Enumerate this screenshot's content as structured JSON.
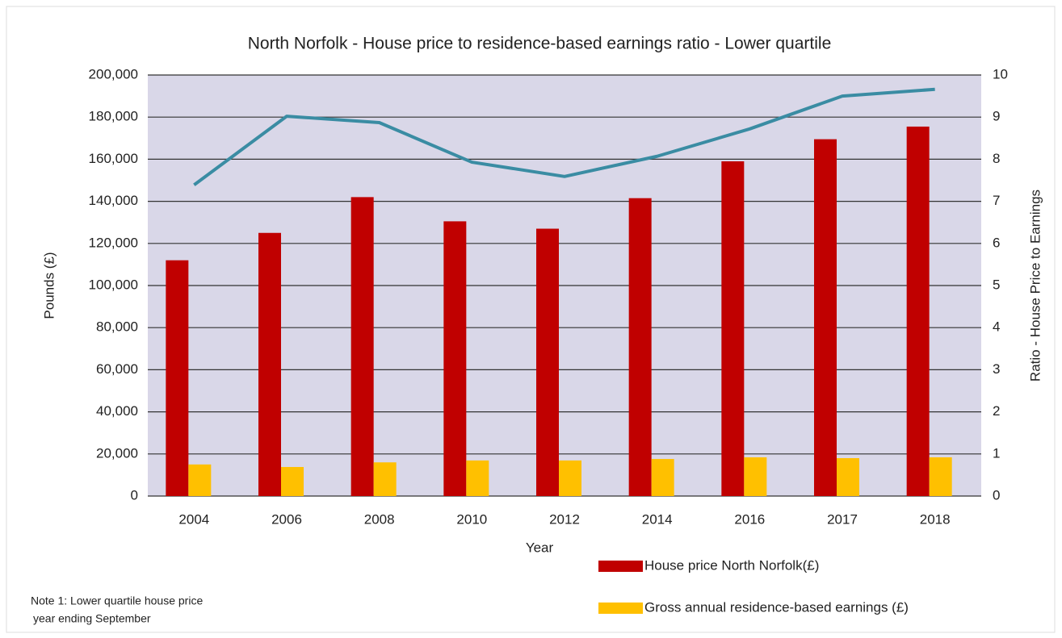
{
  "chart_data": {
    "type": "bar",
    "title": "North Norfolk - House price to residence-based earnings ratio - Lower quartile",
    "x_label": "Year",
    "y_label": "Pounds (£)",
    "y2_label": "Ratio - House Price to Earnings",
    "note": [
      "Note 1: Lower quartile house price",
      "year ending September"
    ],
    "categories": [
      "2004",
      "2006",
      "2008",
      "2010",
      "2012",
      "2014",
      "2016",
      "2017",
      "2018"
    ],
    "series": [
      {
        "name": "House price North Norfolk(£)",
        "color": "#c00000",
        "type": "bar",
        "values": [
          112000,
          125000,
          142000,
          130500,
          127000,
          141500,
          159000,
          169500,
          175500
        ]
      },
      {
        "name": "Gross annual residence-based earnings (£)",
        "color": "#ffc000",
        "type": "bar",
        "values": [
          15000,
          13800,
          16000,
          16900,
          16900,
          17600,
          18400,
          18000,
          18400
        ]
      },
      {
        "color": "#3a8ca3",
        "type": "line",
        "axis": "y2",
        "values": [
          7.39,
          9.02,
          8.87,
          7.93,
          7.59,
          8.07,
          8.72,
          9.5,
          9.66
        ]
      }
    ],
    "ylim": [
      0,
      200000
    ],
    "yticks": [
      0,
      {
        "value": 20000,
        "label": "20,000"
      },
      {
        "value": 40000,
        "label": "40,000"
      },
      {
        "value": 60000,
        "label": "60,000"
      },
      {
        "value": 80000,
        "label": "80,000"
      },
      {
        "value": 100000,
        "label": "100,000"
      },
      {
        "value": 120000,
        "label": "120,000"
      },
      {
        "value": 140000,
        "label": "140,000"
      },
      {
        "value": 160000,
        "label": "160,000"
      },
      {
        "value": 180000,
        "label": "180,000"
      },
      {
        "value": 200000,
        "label": "200,000"
      }
    ],
    "y2lim": [
      0,
      10
    ],
    "y2ticks": [
      0,
      1,
      2,
      3,
      4,
      5,
      6,
      7,
      8,
      9,
      10
    ],
    "grid": true,
    "plot_background": "#d9d7e8"
  }
}
